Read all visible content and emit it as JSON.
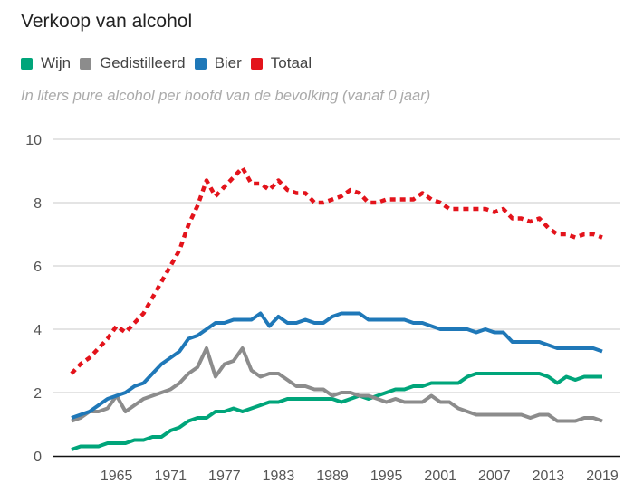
{
  "header": {
    "title": "Verkoop van alcohol",
    "subtitle": "In liters pure alcohol per hoofd van de bevolking (vanaf 0 jaar)"
  },
  "legend": [
    {
      "label": "Wijn",
      "color": "#00a57a"
    },
    {
      "label": "Gedistilleerd",
      "color": "#8c8c8c"
    },
    {
      "label": "Bier",
      "color": "#1f78b8"
    },
    {
      "label": "Totaal",
      "color": "#e3131b"
    }
  ],
  "chart_data": {
    "type": "line",
    "title": "Verkoop van alcohol",
    "subtitle": "In liters pure alcohol per hoofd van de bevolking (vanaf 0 jaar)",
    "xlabel": "",
    "ylabel": "",
    "xlim": [
      1960,
      2019
    ],
    "ylim": [
      0,
      10
    ],
    "y_ticks": [
      0,
      2,
      4,
      6,
      8,
      10
    ],
    "x_ticks": [
      1965,
      1971,
      1977,
      1983,
      1989,
      1995,
      2001,
      2007,
      2013,
      2019
    ],
    "grid": true,
    "legend_position": "top-left",
    "x": [
      1960,
      1961,
      1962,
      1963,
      1964,
      1965,
      1966,
      1967,
      1968,
      1969,
      1970,
      1971,
      1972,
      1973,
      1974,
      1975,
      1976,
      1977,
      1978,
      1979,
      1980,
      1981,
      1982,
      1983,
      1984,
      1985,
      1986,
      1987,
      1988,
      1989,
      1990,
      1991,
      1992,
      1993,
      1994,
      1995,
      1996,
      1997,
      1998,
      1999,
      2000,
      2001,
      2002,
      2003,
      2004,
      2005,
      2006,
      2007,
      2008,
      2009,
      2010,
      2011,
      2012,
      2013,
      2014,
      2015,
      2016,
      2017,
      2018,
      2019
    ],
    "series": [
      {
        "name": "Wijn",
        "color": "#00a57a",
        "style": "solid",
        "values": [
          0.2,
          0.3,
          0.3,
          0.3,
          0.4,
          0.4,
          0.4,
          0.5,
          0.5,
          0.6,
          0.6,
          0.8,
          0.9,
          1.1,
          1.2,
          1.2,
          1.4,
          1.4,
          1.5,
          1.4,
          1.5,
          1.6,
          1.7,
          1.7,
          1.8,
          1.8,
          1.8,
          1.8,
          1.8,
          1.8,
          1.7,
          1.8,
          1.9,
          1.8,
          1.9,
          2.0,
          2.1,
          2.1,
          2.2,
          2.2,
          2.3,
          2.3,
          2.3,
          2.3,
          2.5,
          2.6,
          2.6,
          2.6,
          2.6,
          2.6,
          2.6,
          2.6,
          2.6,
          2.5,
          2.3,
          2.5,
          2.4,
          2.5,
          2.5,
          2.5
        ]
      },
      {
        "name": "Gedistilleerd",
        "color": "#8c8c8c",
        "style": "solid",
        "values": [
          1.1,
          1.2,
          1.4,
          1.4,
          1.5,
          1.9,
          1.4,
          1.6,
          1.8,
          1.9,
          2.0,
          2.1,
          2.3,
          2.6,
          2.8,
          3.4,
          2.5,
          2.9,
          3.0,
          3.4,
          2.7,
          2.5,
          2.6,
          2.6,
          2.4,
          2.2,
          2.2,
          2.1,
          2.1,
          1.9,
          2.0,
          2.0,
          1.9,
          1.9,
          1.8,
          1.7,
          1.8,
          1.7,
          1.7,
          1.7,
          1.9,
          1.7,
          1.7,
          1.5,
          1.4,
          1.3,
          1.3,
          1.3,
          1.3,
          1.3,
          1.3,
          1.2,
          1.3,
          1.3,
          1.1,
          1.1,
          1.1,
          1.2,
          1.2,
          1.1
        ]
      },
      {
        "name": "Bier",
        "color": "#1f78b8",
        "style": "solid",
        "values": [
          1.2,
          1.3,
          1.4,
          1.6,
          1.8,
          1.9,
          2.0,
          2.2,
          2.3,
          2.6,
          2.9,
          3.1,
          3.3,
          3.7,
          3.8,
          4.0,
          4.2,
          4.2,
          4.3,
          4.3,
          4.3,
          4.5,
          4.1,
          4.4,
          4.2,
          4.2,
          4.3,
          4.2,
          4.2,
          4.4,
          4.5,
          4.5,
          4.5,
          4.3,
          4.3,
          4.3,
          4.3,
          4.3,
          4.2,
          4.2,
          4.1,
          4.0,
          4.0,
          4.0,
          4.0,
          3.9,
          4.0,
          3.9,
          3.9,
          3.6,
          3.6,
          3.6,
          3.6,
          3.5,
          3.4,
          3.4,
          3.4,
          3.4,
          3.4,
          3.3
        ]
      },
      {
        "name": "Totaal",
        "color": "#e3131b",
        "style": "dotted",
        "values": [
          2.6,
          2.9,
          3.1,
          3.4,
          3.7,
          4.1,
          3.9,
          4.2,
          4.5,
          5.0,
          5.5,
          6.0,
          6.5,
          7.3,
          7.9,
          8.7,
          8.2,
          8.5,
          8.8,
          9.1,
          8.6,
          8.6,
          8.4,
          8.7,
          8.4,
          8.3,
          8.3,
          8.0,
          8.0,
          8.1,
          8.2,
          8.4,
          8.3,
          8.0,
          8.0,
          8.1,
          8.1,
          8.1,
          8.1,
          8.3,
          8.1,
          8.0,
          7.8,
          7.8,
          7.8,
          7.8,
          7.8,
          7.7,
          7.8,
          7.5,
          7.5,
          7.4,
          7.5,
          7.2,
          7.0,
          7.0,
          6.9,
          7.0,
          7.0,
          6.9
        ]
      }
    ]
  }
}
